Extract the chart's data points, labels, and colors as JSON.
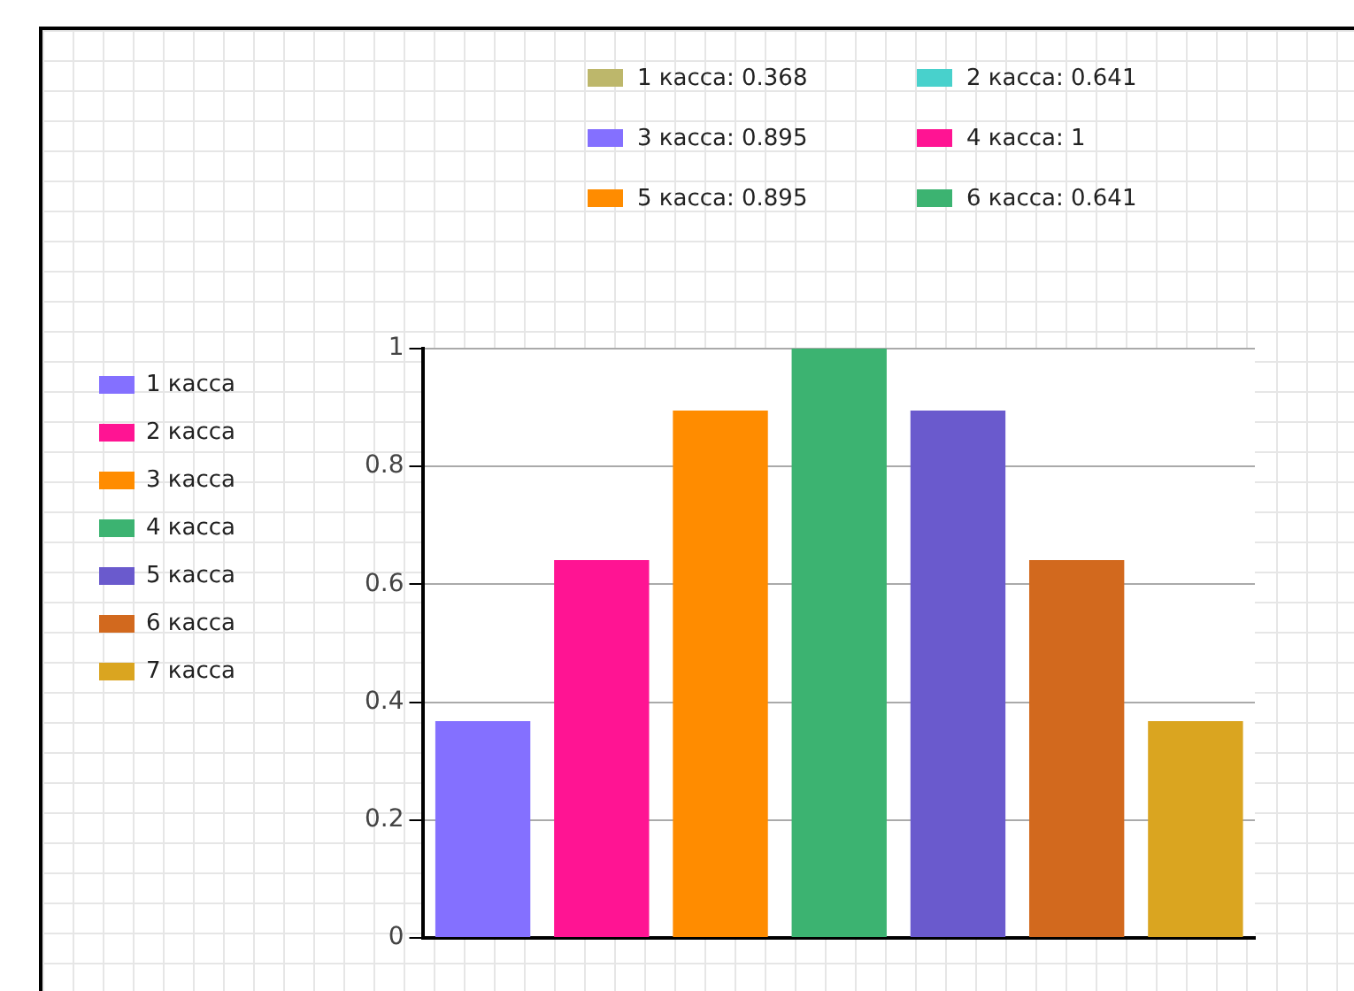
{
  "chart_data": {
    "type": "bar",
    "categories": [
      null,
      null,
      null,
      null,
      null,
      null,
      null
    ],
    "series": [
      {
        "name": "1 касса",
        "color": "#8470ff",
        "values": [
          0.368,
          null,
          null,
          null,
          null,
          null,
          null
        ]
      },
      {
        "name": "2 касса",
        "color": "#ff1493",
        "values": [
          null,
          0.641,
          null,
          null,
          null,
          null,
          null
        ]
      },
      {
        "name": "3 касса",
        "color": "#ff8c00",
        "values": [
          null,
          null,
          0.895,
          null,
          null,
          null,
          null
        ]
      },
      {
        "name": "4 касса",
        "color": "#3cb371",
        "values": [
          null,
          null,
          null,
          1,
          null,
          null,
          null
        ]
      },
      {
        "name": "5 касса",
        "color": "#6a5acd",
        "values": [
          null,
          null,
          null,
          null,
          0.895,
          null,
          null
        ]
      },
      {
        "name": "6 касса",
        "color": "#d2691e",
        "values": [
          null,
          null,
          null,
          null,
          null,
          0.641,
          null
        ]
      },
      {
        "name": "7 касса",
        "color": "#daa520",
        "values": [
          null,
          null,
          null,
          null,
          null,
          null,
          0.368
        ]
      }
    ],
    "ylim": [
      0,
      1
    ],
    "yticks": [
      0,
      0.2,
      0.4,
      0.6,
      0.8,
      1
    ],
    "grid": "y",
    "legend": "left",
    "tick_labels": "y",
    "annotations": [
      "1 касса: 0.368",
      "2 касса: 0.641",
      "3 касса: 0.895",
      "4 касса: 1",
      "5 касса: 0.895",
      "6 касса: 0.641"
    ]
  }
}
